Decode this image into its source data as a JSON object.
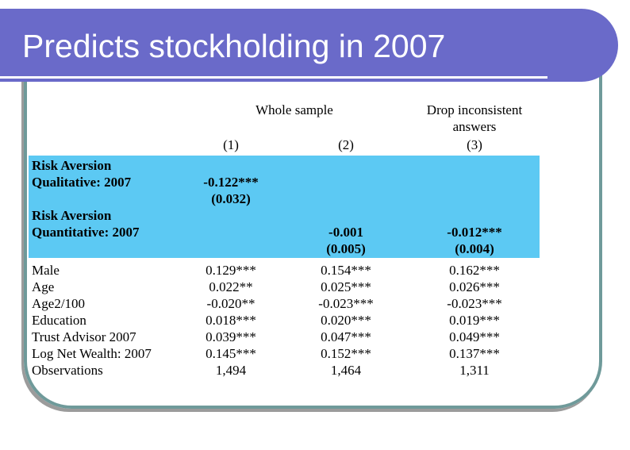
{
  "slide": {
    "title": "Predicts stockholding in 2007"
  },
  "colors": {
    "title_bar": "#6A6AC9",
    "frame_border": "#6F9A9A",
    "highlight": "#5CC9F3",
    "title_text": "#FFFFFF",
    "table_text": "#000000"
  },
  "table": {
    "group_headers": {
      "whole_sample": "Whole sample",
      "drop_inconsistent": "Drop inconsistent answers"
    },
    "column_numbers": {
      "c1": "(1)",
      "c2": "(2)",
      "c3": "(3)"
    },
    "rows": [
      {
        "label": "Risk Aversion",
        "c1": "",
        "c2": "",
        "c3": ""
      },
      {
        "label": "Qualitative: 2007",
        "c1": "-0.122***",
        "c2": "",
        "c3": ""
      },
      {
        "label": "",
        "c1": "(0.032)",
        "c2": "",
        "c3": ""
      },
      {
        "label": "Risk Aversion",
        "c1": "",
        "c2": "",
        "c3": ""
      },
      {
        "label": "Quantitative: 2007",
        "c1": "",
        "c2": "-0.001",
        "c3": "-0.012***"
      },
      {
        "label": "",
        "c1": "",
        "c2": "(0.005)",
        "c3": "(0.004)"
      },
      {
        "label": "Male",
        "c1": "0.129***",
        "c2": "0.154***",
        "c3": "0.162***"
      },
      {
        "label": "Age",
        "c1": "0.022**",
        "c2": "0.025***",
        "c3": "0.026***"
      },
      {
        "label": "Age2/100",
        "c1": "-0.020**",
        "c2": "-0.023***",
        "c3": "-0.023***"
      },
      {
        "label": "Education",
        "c1": "0.018***",
        "c2": "0.020***",
        "c3": "0.019***"
      },
      {
        "label": "Trust Advisor 2007",
        "c1": "0.039***",
        "c2": "0.047***",
        "c3": "0.049***"
      },
      {
        "label": "Log Net Wealth: 2007",
        "c1": "0.145***",
        "c2": "0.152***",
        "c3": "0.137***"
      },
      {
        "label": "Observations",
        "c1": "1,494",
        "c2": "1,464",
        "c3": "1,311"
      }
    ]
  },
  "chart_data": {
    "type": "table",
    "title": "Predicts stockholding in 2007",
    "column_groups": [
      "Whole sample (1)",
      "Whole sample (2)",
      "Drop inconsistent answers (3)"
    ],
    "highlighted_rows": [
      "Risk Aversion Qualitative: 2007",
      "Risk Aversion Quantitative: 2007"
    ],
    "cells": {
      "Risk Aversion Qualitative: 2007": {
        "coef": [
          "-0.122***",
          "",
          ""
        ],
        "se": [
          "(0.032)",
          "",
          ""
        ]
      },
      "Risk Aversion Quantitative: 2007": {
        "coef": [
          "",
          "-0.001",
          "-0.012***"
        ],
        "se": [
          "",
          "(0.005)",
          "(0.004)"
        ]
      },
      "Male": [
        "0.129***",
        "0.154***",
        "0.162***"
      ],
      "Age": [
        "0.022**",
        "0.025***",
        "0.026***"
      ],
      "Age2/100": [
        "-0.020**",
        "-0.023***",
        "-0.023***"
      ],
      "Education": [
        "0.018***",
        "0.020***",
        "0.019***"
      ],
      "Trust Advisor 2007": [
        "0.039***",
        "0.047***",
        "0.049***"
      ],
      "Log Net Wealth: 2007": [
        "0.145***",
        "0.152***",
        "0.137***"
      ],
      "Observations": [
        "1,494",
        "1,464",
        "1,311"
      ]
    }
  }
}
